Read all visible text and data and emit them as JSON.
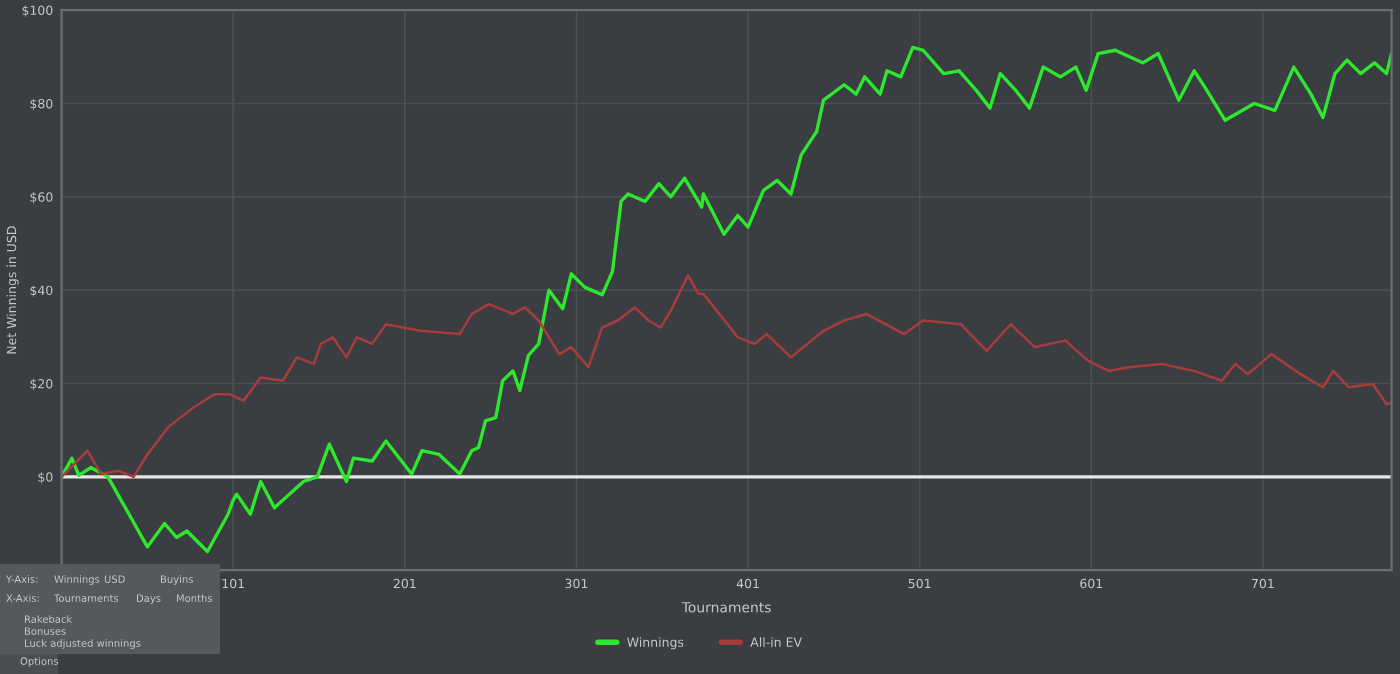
{
  "chart_data": {
    "type": "line",
    "xlabel": "Tournaments",
    "ylabel": "Net Winnings in USD",
    "xlim": [
      1,
      776
    ],
    "ylim": [
      -20,
      100
    ],
    "xticks": [
      101,
      201,
      301,
      401,
      501,
      601,
      701
    ],
    "yticks": [
      {
        "value": 0,
        "label": "$0"
      },
      {
        "value": 20,
        "label": "$20"
      },
      {
        "value": 40,
        "label": "$40"
      },
      {
        "value": 60,
        "label": "$60"
      },
      {
        "value": 80,
        "label": "$80"
      },
      {
        "value": 100,
        "label": "$100"
      }
    ],
    "grid": true,
    "legend": "bottom",
    "ref_lines": [
      {
        "axis": "y",
        "value": 0,
        "color": "#e8e8e8"
      }
    ],
    "annotations": [
      "Y-Axis:",
      "Winnings",
      "USD",
      "Buyins",
      "X-Axis:",
      "Tournaments",
      "Days",
      "Months",
      "Rakeback",
      "Bonuses",
      "Luck adjusted winnings",
      "Options"
    ],
    "series": [
      {
        "name": "Winnings",
        "color": "#2ee82e",
        "x": [
          1,
          7,
          11,
          18,
          28,
          51,
          61,
          68,
          74,
          86,
          98,
          101,
          103,
          111,
          117,
          125,
          142,
          150,
          157,
          167,
          171,
          182,
          190,
          205,
          211,
          221,
          233,
          240,
          244,
          248,
          254,
          258,
          264,
          268,
          273,
          279,
          285,
          293,
          298,
          306,
          316,
          322,
          327,
          331,
          341,
          349,
          356,
          364,
          374,
          375,
          387,
          395,
          401,
          410,
          418,
          426,
          432,
          441,
          445,
          457,
          464,
          469,
          478,
          482,
          490,
          497,
          503,
          515,
          524,
          534,
          542,
          548,
          557,
          565,
          573,
          583,
          592,
          598,
          605,
          615,
          631,
          640,
          652,
          661,
          667,
          679,
          696,
          708,
          719,
          729,
          736,
          743,
          750,
          758,
          766,
          773,
          776
        ],
        "values": [
          0,
          4,
          0.3,
          2,
          0,
          -15,
          -10,
          -13,
          -11.6,
          -16,
          -8,
          -5,
          -3.7,
          -8,
          -1,
          -6.6,
          -1,
          0,
          7,
          -1,
          4,
          3.4,
          7.7,
          0.6,
          5.6,
          4.8,
          0.6,
          5.6,
          6.3,
          12,
          12.7,
          20.6,
          22.7,
          18.5,
          26,
          28.5,
          40,
          36,
          43.5,
          40.6,
          39,
          44,
          59,
          60.6,
          59,
          62.8,
          60,
          64,
          57.8,
          60.6,
          52,
          56,
          53.5,
          61.4,
          63.5,
          60.6,
          69,
          74,
          80.7,
          84,
          82,
          85.7,
          82,
          87,
          85.7,
          92,
          91.4,
          86.4,
          87,
          82.8,
          79,
          86.4,
          82.8,
          79,
          87.8,
          85.7,
          87.8,
          82.8,
          90.7,
          91.4,
          88.7,
          90.7,
          80.7,
          87,
          83.6,
          76.4,
          80,
          78.5,
          87.8,
          82,
          77,
          86.4,
          89.3,
          86.4,
          88.7,
          86.4,
          90.7
        ]
      },
      {
        "name": "All-in EV",
        "color": "#a83c3c",
        "x": [
          1,
          16,
          24,
          34,
          43,
          51,
          63,
          78,
          90,
          99,
          107,
          117,
          130,
          138,
          148,
          152,
          159,
          167,
          173,
          182,
          190,
          210,
          233,
          240,
          250,
          264,
          271,
          279,
          291,
          298,
          308,
          316,
          325,
          335,
          343,
          350,
          356,
          366,
          372,
          375,
          395,
          405,
          412,
          426,
          445,
          457,
          470,
          492,
          503,
          525,
          540,
          554,
          568,
          586,
          599,
          611,
          623,
          642,
          661,
          677,
          685,
          692,
          706,
          723,
          736,
          742,
          751,
          765,
          773,
          776
        ],
        "values": [
          0,
          5.6,
          0.6,
          1.3,
          0,
          4.8,
          10.6,
          14.9,
          17.7,
          17.7,
          16.3,
          21.3,
          20.6,
          25.6,
          24.2,
          28.5,
          29.9,
          25.6,
          29.9,
          28.5,
          32.7,
          31.3,
          30.6,
          34.9,
          37,
          34.9,
          36.3,
          33.5,
          26.3,
          27.8,
          23.5,
          32,
          33.5,
          36.3,
          33.5,
          32,
          35.6,
          43.2,
          39.2,
          39.2,
          29.9,
          28.5,
          30.6,
          25.6,
          31.3,
          33.5,
          34.9,
          30.6,
          33.5,
          32.7,
          27,
          32.7,
          27.8,
          29.2,
          24.9,
          22.7,
          23.5,
          24.2,
          22.7,
          20.6,
          24.2,
          22,
          26.3,
          22,
          19.2,
          22.7,
          19.2,
          19.9,
          15.6,
          15.9
        ]
      }
    ]
  }
}
